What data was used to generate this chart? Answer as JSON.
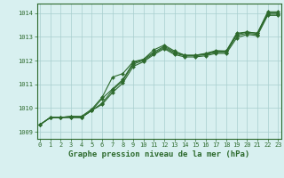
{
  "x": [
    0,
    1,
    2,
    3,
    4,
    5,
    6,
    7,
    8,
    9,
    10,
    11,
    12,
    13,
    14,
    15,
    16,
    17,
    18,
    19,
    20,
    21,
    22,
    23
  ],
  "series": [
    [
      1009.3,
      1009.6,
      1009.6,
      1009.6,
      1009.6,
      1009.9,
      1010.15,
      1010.65,
      1011.05,
      1011.75,
      1011.95,
      1012.25,
      1012.5,
      1012.25,
      1012.15,
      1012.15,
      1012.2,
      1012.3,
      1012.3,
      1012.95,
      1013.1,
      1013.05,
      1013.9,
      1013.9
    ],
    [
      1009.3,
      1009.6,
      1009.6,
      1009.6,
      1009.6,
      1009.9,
      1010.2,
      1010.75,
      1011.15,
      1011.85,
      1012.0,
      1012.3,
      1012.55,
      1012.3,
      1012.2,
      1012.2,
      1012.25,
      1012.35,
      1012.35,
      1013.05,
      1013.15,
      1013.1,
      1013.95,
      1013.95
    ],
    [
      1009.3,
      1009.6,
      1009.6,
      1009.65,
      1009.6,
      1009.9,
      1010.4,
      1010.8,
      1011.2,
      1011.9,
      1012.05,
      1012.35,
      1012.6,
      1012.35,
      1012.22,
      1012.22,
      1012.28,
      1012.38,
      1012.4,
      1013.1,
      1013.2,
      1013.15,
      1014.0,
      1014.0
    ],
    [
      1009.3,
      1009.6,
      1009.6,
      1009.65,
      1009.65,
      1009.95,
      1010.45,
      1011.3,
      1011.45,
      1011.95,
      1012.05,
      1012.45,
      1012.65,
      1012.4,
      1012.22,
      1012.22,
      1012.3,
      1012.42,
      1012.4,
      1013.15,
      1013.2,
      1013.15,
      1014.05,
      1014.05
    ]
  ],
  "line_color": "#2d6a2d",
  "marker_color": "#2d6a2d",
  "bg_color": "#d8f0f0",
  "grid_color": "#a8cece",
  "title": "Graphe pression niveau de la mer (hPa)",
  "xlabel_ticks": [
    0,
    1,
    2,
    3,
    4,
    5,
    6,
    7,
    8,
    9,
    10,
    11,
    12,
    13,
    14,
    15,
    16,
    17,
    18,
    19,
    20,
    21,
    22,
    23
  ],
  "ylabel_ticks": [
    1009,
    1010,
    1011,
    1012,
    1013,
    1014
  ],
  "ylim": [
    1008.7,
    1014.4
  ],
  "xlim": [
    -0.3,
    23.3
  ],
  "title_fontsize": 6.5,
  "tick_fontsize": 5.0,
  "lw": 0.8,
  "ms": 2.0
}
